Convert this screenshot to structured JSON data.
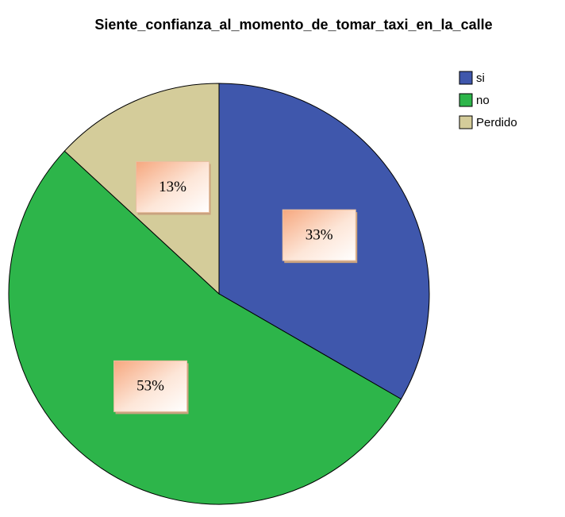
{
  "chart_data": {
    "type": "pie",
    "title": "Siente_confianza_al_momento_de_tomar_taxi_en_la_calle",
    "categories": [
      "si",
      "no",
      "Perdido"
    ],
    "values": [
      33,
      53,
      13
    ],
    "value_labels": [
      "33%",
      "53%",
      "13%"
    ],
    "colors": [
      "#3f57ac",
      "#2db54a",
      "#d4cc9a"
    ],
    "legend": "upper right"
  }
}
